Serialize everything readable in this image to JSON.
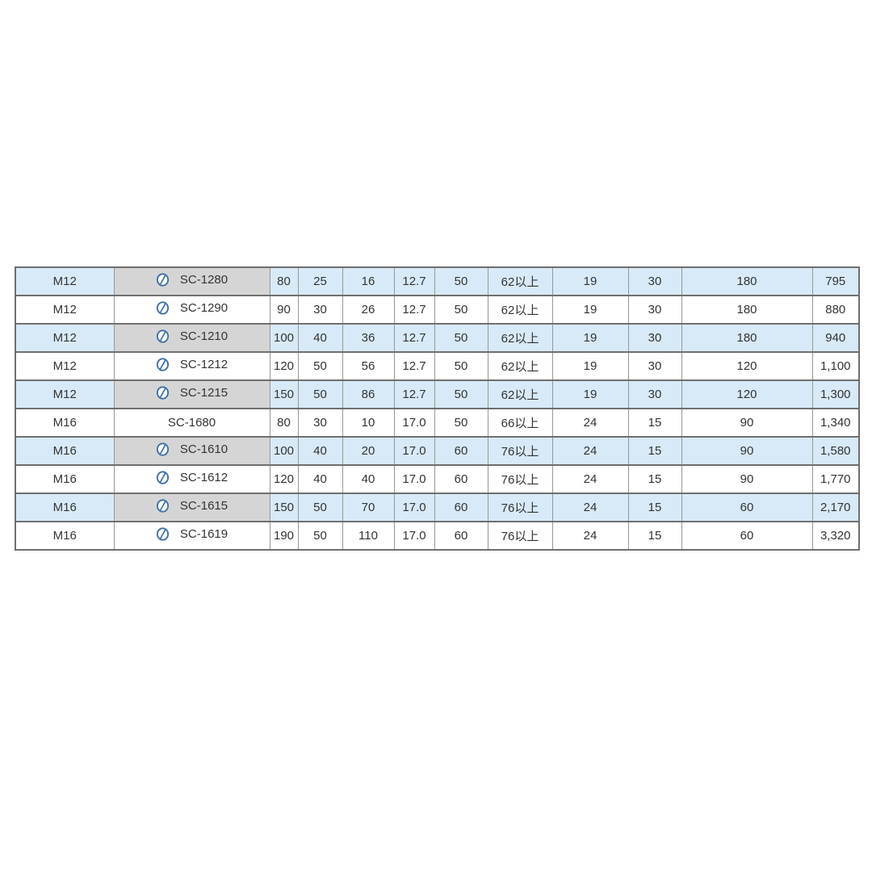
{
  "table": {
    "rows": [
      {
        "size": "M12",
        "model": "SC-1280",
        "cad_icon": true,
        "cells": [
          "80",
          "25",
          "16",
          "12.7",
          "50",
          "62以上",
          "19",
          "30",
          "180"
        ],
        "price": "795"
      },
      {
        "size": "M12",
        "model": "SC-1290",
        "cad_icon": true,
        "cells": [
          "90",
          "30",
          "26",
          "12.7",
          "50",
          "62以上",
          "19",
          "30",
          "180"
        ],
        "price": "880"
      },
      {
        "size": "M12",
        "model": "SC-1210",
        "cad_icon": true,
        "cells": [
          "100",
          "40",
          "36",
          "12.7",
          "50",
          "62以上",
          "19",
          "30",
          "180"
        ],
        "price": "940"
      },
      {
        "size": "M12",
        "model": "SC-1212",
        "cad_icon": true,
        "cells": [
          "120",
          "50",
          "56",
          "12.7",
          "50",
          "62以上",
          "19",
          "30",
          "120"
        ],
        "price": "1,100"
      },
      {
        "size": "M12",
        "model": "SC-1215",
        "cad_icon": true,
        "cells": [
          "150",
          "50",
          "86",
          "12.7",
          "50",
          "62以上",
          "19",
          "30",
          "120"
        ],
        "price": "1,300"
      },
      {
        "size": "M16",
        "model": "SC-1680",
        "cad_icon": false,
        "cells": [
          "80",
          "30",
          "10",
          "17.0",
          "50",
          "66以上",
          "24",
          "15",
          "90"
        ],
        "price": "1,340"
      },
      {
        "size": "M16",
        "model": "SC-1610",
        "cad_icon": true,
        "cells": [
          "100",
          "40",
          "20",
          "17.0",
          "60",
          "76以上",
          "24",
          "15",
          "90"
        ],
        "price": "1,580"
      },
      {
        "size": "M16",
        "model": "SC-1612",
        "cad_icon": true,
        "cells": [
          "120",
          "40",
          "40",
          "17.0",
          "60",
          "76以上",
          "24",
          "15",
          "90"
        ],
        "price": "1,770"
      },
      {
        "size": "M16",
        "model": "SC-1615",
        "cad_icon": true,
        "cells": [
          "150",
          "50",
          "70",
          "17.0",
          "60",
          "76以上",
          "24",
          "15",
          "60"
        ],
        "price": "2,170"
      },
      {
        "size": "M16",
        "model": "SC-1619",
        "cad_icon": true,
        "cells": [
          "190",
          "50",
          "110",
          "17.0",
          "60",
          "76以上",
          "24",
          "15",
          "60"
        ],
        "price": "3,320"
      }
    ]
  },
  "icons": {
    "cad_icon_name": "cad-drawing-icon"
  },
  "colors": {
    "row_stripe_blue": "#d8eaf7",
    "model_cell_gray": "#ececec",
    "model_cell_gray_on_stripe": "#d5d5d5",
    "border_horizontal": "#6f6f6f",
    "border_vertical": "#979797",
    "icon_blue": "#3e6fa8",
    "text": "#333333"
  }
}
